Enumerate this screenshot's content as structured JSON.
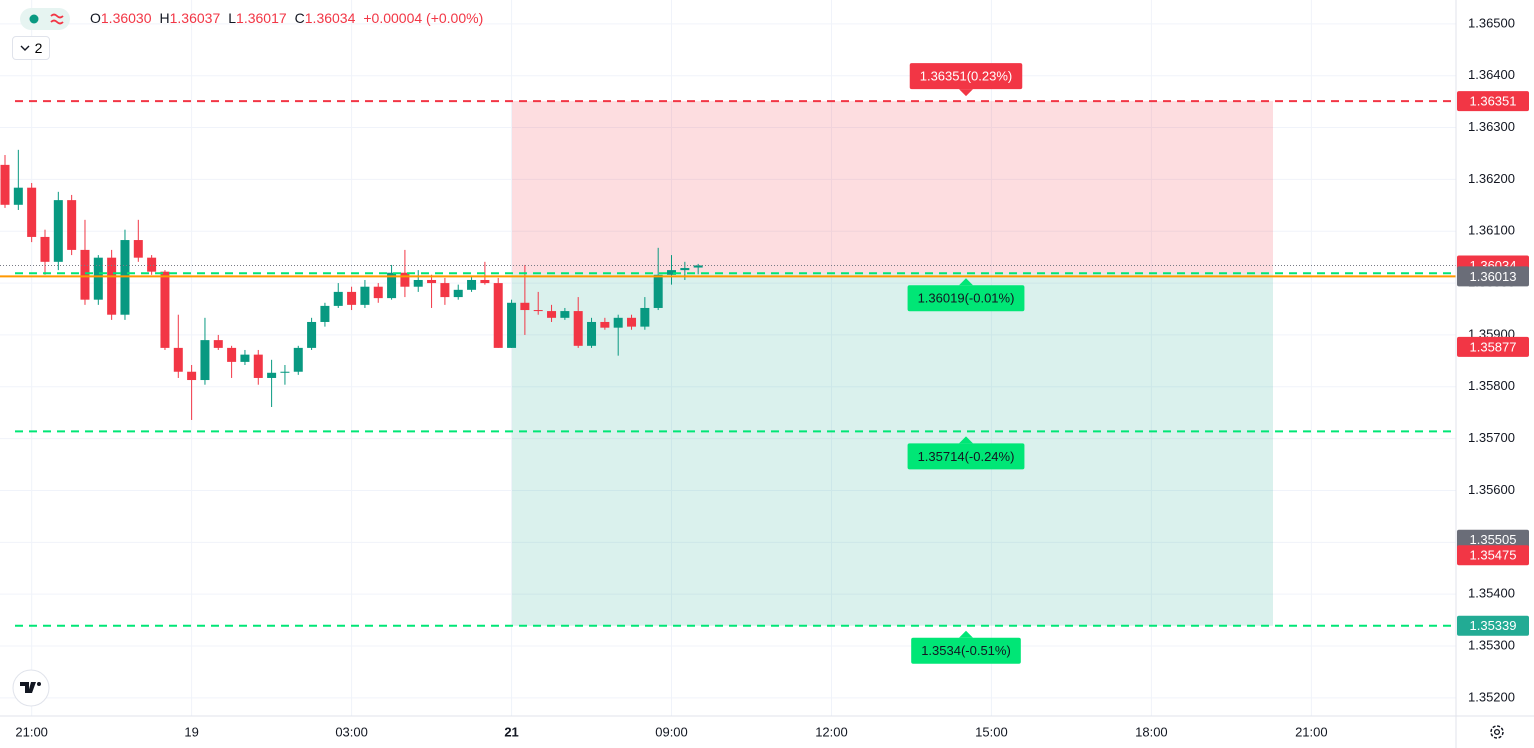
{
  "chart_data": {
    "type": "candlestick",
    "header": {
      "items": [
        {
          "label": "O",
          "value": "1.36030"
        },
        {
          "label": "H",
          "value": "1.36037"
        },
        {
          "label": "L",
          "value": "1.36017"
        },
        {
          "label": "C",
          "value": "1.36034"
        }
      ],
      "change": "+0.00004 (+0.00%)"
    },
    "collapse_button": "2",
    "up_color": "#089981",
    "down_color": "#f23645",
    "open": [
      1.36228,
      1.36151,
      1.36184,
      1.36089,
      1.36041,
      1.3616,
      1.36064,
      1.35968,
      1.36049,
      1.35939,
      1.36083,
      1.36049,
      1.36022,
      1.35875,
      1.35829,
      1.35813,
      1.3589,
      1.35875,
      1.35848,
      1.35862,
      1.35817,
      1.35827,
      1.35829,
      1.35875,
      1.35925,
      1.35956,
      1.35983,
      1.35958,
      1.35993,
      1.35971,
      1.3602,
      1.35993,
      1.36006,
      1.36,
      1.35973,
      1.35987,
      1.36006,
      1.36,
      1.35875,
      1.35962,
      1.35948,
      1.35946,
      1.35933,
      1.35946,
      1.35879,
      1.35925,
      1.35914,
      1.35933,
      1.35916,
      1.35952,
      1.36016,
      1.36025,
      1.3603
    ],
    "high": [
      1.36247,
      1.36257,
      1.36193,
      1.36103,
      1.36176,
      1.3617,
      1.36122,
      1.36054,
      1.36064,
      1.36103,
      1.36122,
      1.36054,
      1.36025,
      1.35939,
      1.35842,
      1.35933,
      1.359,
      1.35879,
      1.35871,
      1.35871,
      1.35852,
      1.35842,
      1.35879,
      1.35933,
      1.35962,
      1.36,
      1.35993,
      1.36006,
      1.36,
      1.36035,
      1.36064,
      1.36025,
      1.36016,
      1.3601,
      1.35997,
      1.36014,
      1.36041,
      1.3601,
      1.35968,
      1.36035,
      1.35983,
      1.35958,
      1.35952,
      1.35973,
      1.35933,
      1.35933,
      1.35939,
      1.35939,
      1.35973,
      1.36068,
      1.36054,
      1.36041,
      1.36037
    ],
    "low": [
      1.36145,
      1.36141,
      1.36079,
      1.36016,
      1.36025,
      1.36054,
      1.35958,
      1.35958,
      1.35929,
      1.35929,
      1.36041,
      1.36016,
      1.35871,
      1.35817,
      1.35736,
      1.35804,
      1.35871,
      1.35817,
      1.35842,
      1.35804,
      1.35761,
      1.35804,
      1.35823,
      1.35871,
      1.35916,
      1.35952,
      1.35948,
      1.35952,
      1.35962,
      1.35968,
      1.35973,
      1.35983,
      1.35952,
      1.35958,
      1.35968,
      1.35983,
      1.35997,
      1.35875,
      1.35875,
      1.359,
      1.35939,
      1.35925,
      1.35929,
      1.35875,
      1.35875,
      1.3591,
      1.3586,
      1.3591,
      1.3591,
      1.35948,
      1.35997,
      1.36006,
      1.36017
    ],
    "close": [
      1.36151,
      1.36184,
      1.36089,
      1.36041,
      1.3616,
      1.36064,
      1.35968,
      1.36049,
      1.35939,
      1.36083,
      1.36049,
      1.36022,
      1.35875,
      1.35829,
      1.35813,
      1.3589,
      1.35875,
      1.35848,
      1.35862,
      1.35817,
      1.35827,
      1.35829,
      1.35875,
      1.35925,
      1.35956,
      1.35983,
      1.35958,
      1.35993,
      1.35971,
      1.3602,
      1.35993,
      1.36006,
      1.36,
      1.35973,
      1.35987,
      1.36006,
      1.36,
      1.35875,
      1.35962,
      1.35948,
      1.35946,
      1.35933,
      1.35946,
      1.35879,
      1.35925,
      1.35914,
      1.35933,
      1.35916,
      1.35952,
      1.36016,
      1.36025,
      1.36029,
      1.36034
    ],
    "xlim": [
      -0.375,
      108.85
    ],
    "xticks": [
      {
        "value": 2,
        "label": "21:00"
      },
      {
        "value": 14,
        "label": "19"
      },
      {
        "value": 26,
        "label": "03:00"
      },
      {
        "value": 38,
        "label": "21"
      },
      {
        "value": 50,
        "label": "09:00"
      },
      {
        "value": 62,
        "label": "12:00"
      },
      {
        "value": 74,
        "label": "15:00"
      },
      {
        "value": 86,
        "label": "18:00"
      },
      {
        "value": 98,
        "label": "21:00"
      }
    ],
    "ylim": [
      1.35165,
      1.36546
    ],
    "yticks": [
      {
        "value": 1.365,
        "label": "1.36500"
      },
      {
        "value": 1.364,
        "label": "1.36400"
      },
      {
        "value": 1.363,
        "label": "1.36300"
      },
      {
        "value": 1.362,
        "label": "1.36200"
      },
      {
        "value": 1.361,
        "label": "1.36100"
      },
      {
        "value": 1.36,
        "label": "1.36000"
      },
      {
        "value": 1.359,
        "label": "1.35900"
      },
      {
        "value": 1.358,
        "label": "1.35800"
      },
      {
        "value": 1.357,
        "label": "1.35700"
      },
      {
        "value": 1.356,
        "label": "1.35600"
      },
      {
        "value": 1.355,
        "label": "1.35500"
      },
      {
        "value": 1.354,
        "label": "1.35400"
      },
      {
        "value": 1.353,
        "label": "1.35300"
      },
      {
        "value": 1.352,
        "label": "1.35200"
      }
    ],
    "grid": true,
    "zones": [
      {
        "from": 1.36351,
        "to": 1.36019,
        "color": "#f23645"
      },
      {
        "from": 1.36019,
        "to": 1.35339,
        "color": "#22ab94"
      }
    ],
    "lines": [
      {
        "value": 1.36351,
        "color": "#f23645",
        "style": "dashed"
      },
      {
        "value": 1.36019,
        "color": "#00e676",
        "style": "dashed"
      },
      {
        "value": 1.35714,
        "color": "#00e676",
        "style": "dashed"
      },
      {
        "value": 1.35339,
        "color": "#00e676",
        "style": "dashed"
      },
      {
        "value": 1.36013,
        "color": "#ff9800",
        "style": "solid"
      },
      {
        "value": 1.36034,
        "color": "#787b86",
        "style": "dotted"
      }
    ],
    "zone_labels": [
      {
        "text": "1.36351(0.23%)",
        "value": 1.36351,
        "color": "#f23645",
        "side": "above"
      },
      {
        "text": "1.36019(-0.01%)",
        "value": 1.36019,
        "color": "#00e676",
        "side": "below"
      },
      {
        "text": "1.35714(-0.24%)",
        "value": 1.35714,
        "color": "#00e676",
        "side": "below"
      },
      {
        "text": "1.3534(-0.51%)",
        "value": 1.35339,
        "color": "#00e676",
        "side": "below"
      }
    ],
    "price_labels": [
      {
        "value": 1.36351,
        "color": "#f23645"
      },
      {
        "value": 1.36034,
        "color": "#f23645"
      },
      {
        "value": 1.36013,
        "color": "#6a6d78"
      },
      {
        "value": 1.35877,
        "color": "#f23645"
      },
      {
        "value": 1.35505,
        "color": "#6a6d78"
      },
      {
        "value": 1.35475,
        "color": "#f23645"
      },
      {
        "value": 1.35339,
        "color": "#22ab94"
      }
    ]
  }
}
